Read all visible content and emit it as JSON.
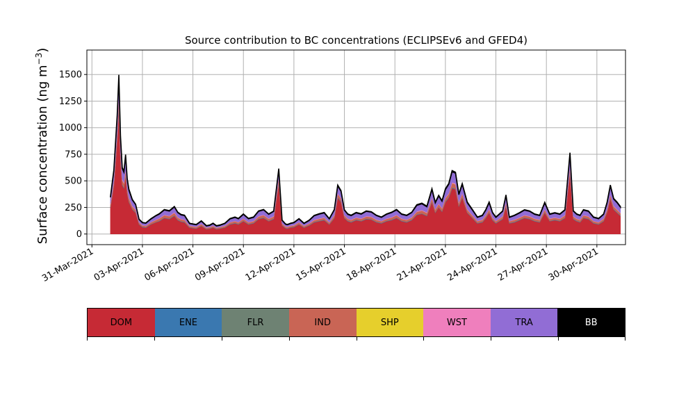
{
  "chart_data": {
    "type": "area",
    "title": "Source contribution to BC concentrations (ECLIPSEv6 and GFED4)",
    "ylabel_main": "Surface concentration (ng m",
    "ylabel_sup": "−3",
    "ylabel_close": ")",
    "xlabel": "",
    "grid": true,
    "ylim": [
      -100,
      1730
    ],
    "xlim": [
      -0.3,
      31.7
    ],
    "yticks": [
      0,
      250,
      500,
      750,
      1000,
      1250,
      1500
    ],
    "ytick_labels": [
      "0",
      "250",
      "500",
      "750",
      "1000",
      "1250",
      "1500"
    ],
    "xticks": [
      0,
      3,
      6,
      9,
      12,
      15,
      18,
      21,
      24,
      27,
      30
    ],
    "xtick_labels": [
      "31-Mar-2021",
      "03-Apr-2021",
      "06-Apr-2021",
      "09-Apr-2021",
      "12-Apr-2021",
      "15-Apr-2021",
      "18-Apr-2021",
      "21-Apr-2021",
      "24-Apr-2021",
      "27-Apr-2021",
      "30-Apr-2021"
    ],
    "legend_placement": "below",
    "legend": [
      {
        "name": "DOM",
        "color": "#c62a35"
      },
      {
        "name": "ENE",
        "color": "#3a78b0"
      },
      {
        "name": "FLR",
        "color": "#6e8273"
      },
      {
        "name": "IND",
        "color": "#c96555"
      },
      {
        "name": "SHP",
        "color": "#e6cf2c"
      },
      {
        "name": "WST",
        "color": "#ef7fbd"
      },
      {
        "name": "TRA",
        "color": "#916dd5"
      },
      {
        "name": "BB",
        "color": "#000000"
      }
    ],
    "x": [
      1.1,
      1.3,
      1.5,
      1.6,
      1.7,
      1.8,
      1.9,
      2.0,
      2.1,
      2.2,
      2.4,
      2.6,
      2.8,
      3.0,
      3.2,
      3.5,
      3.8,
      4.0,
      4.3,
      4.6,
      4.9,
      5.1,
      5.3,
      5.5,
      5.8,
      6.0,
      6.2,
      6.5,
      6.8,
      7.0,
      7.2,
      7.4,
      7.6,
      7.9,
      8.2,
      8.5,
      8.7,
      9.0,
      9.3,
      9.6,
      9.9,
      10.2,
      10.5,
      10.8,
      11.1,
      11.3,
      11.5,
      11.6,
      11.7,
      11.8,
      12.0,
      12.3,
      12.6,
      12.9,
      13.2,
      13.5,
      13.8,
      14.1,
      14.4,
      14.6,
      14.8,
      15.0,
      15.2,
      15.4,
      15.7,
      16.0,
      16.3,
      16.6,
      16.9,
      17.2,
      17.5,
      17.8,
      18.1,
      18.4,
      18.7,
      19.0,
      19.3,
      19.6,
      19.9,
      20.2,
      20.4,
      20.6,
      20.8,
      21.0,
      21.2,
      21.4,
      21.6,
      21.8,
      22.0,
      22.3,
      22.6,
      22.9,
      23.2,
      23.4,
      23.6,
      23.8,
      24.0,
      24.2,
      24.4,
      24.6,
      24.8,
      25.1,
      25.4,
      25.7,
      26.0,
      26.3,
      26.6,
      26.9,
      27.2,
      27.5,
      27.8,
      28.1,
      28.4,
      28.6,
      28.8,
      29.0,
      29.2,
      29.5,
      29.8,
      30.1,
      30.4,
      30.6,
      30.8,
      31.0,
      31.2,
      31.4
    ],
    "series": [
      {
        "name": "DOM",
        "color": "#c62a35",
        "values": [
          250,
          450,
          880,
          1200,
          700,
          460,
          430,
          550,
          380,
          300,
          230,
          200,
          90,
          65,
          60,
          90,
          110,
          120,
          150,
          140,
          170,
          130,
          115,
          110,
          60,
          55,
          50,
          75,
          45,
          50,
          60,
          45,
          50,
          60,
          90,
          100,
          90,
          120,
          90,
          100,
          140,
          150,
          120,
          140,
          480,
          80,
          55,
          50,
          55,
          60,
          65,
          90,
          60,
          80,
          110,
          120,
          130,
          90,
          150,
          340,
          300,
          150,
          120,
          110,
          130,
          120,
          140,
          135,
          110,
          100,
          120,
          130,
          150,
          120,
          110,
          130,
          180,
          190,
          170,
          300,
          200,
          250,
          210,
          300,
          340,
          430,
          420,
          260,
          340,
          200,
          150,
          100,
          110,
          150,
          200,
          130,
          100,
          120,
          140,
          260,
          100,
          110,
          130,
          150,
          140,
          120,
          110,
          200,
          120,
          130,
          120,
          150,
          580,
          140,
          120,
          110,
          150,
          140,
          100,
          90,
          120,
          200,
          330,
          230,
          200,
          170
        ]
      },
      {
        "name": "ENE",
        "color": "#3a78b0",
        "values": [
          3,
          5,
          8,
          10,
          7,
          5,
          5,
          6,
          4,
          4,
          3,
          3,
          2,
          2,
          2,
          2,
          2,
          3,
          3,
          3,
          3,
          3,
          3,
          3,
          2,
          2,
          2,
          2,
          2,
          2,
          2,
          2,
          2,
          2,
          2,
          3,
          3,
          3,
          3,
          3,
          3,
          3,
          3,
          3,
          5,
          2,
          2,
          2,
          2,
          2,
          2,
          2,
          2,
          2,
          3,
          3,
          3,
          2,
          3,
          4,
          4,
          3,
          3,
          3,
          3,
          3,
          3,
          3,
          3,
          3,
          3,
          3,
          3,
          3,
          3,
          3,
          3,
          3,
          3,
          4,
          3,
          3,
          3,
          4,
          4,
          5,
          5,
          4,
          4,
          3,
          3,
          3,
          3,
          3,
          3,
          3,
          3,
          3,
          3,
          4,
          3,
          3,
          3,
          3,
          3,
          3,
          3,
          3,
          3,
          3,
          3,
          3,
          5,
          3,
          3,
          3,
          3,
          3,
          3,
          3,
          3,
          3,
          4,
          3,
          3,
          3
        ]
      },
      {
        "name": "FLR",
        "color": "#6e8273",
        "values": [
          2,
          3,
          5,
          6,
          4,
          3,
          3,
          4,
          3,
          3,
          2,
          2,
          2,
          2,
          2,
          2,
          2,
          2,
          2,
          2,
          2,
          2,
          2,
          2,
          2,
          2,
          2,
          2,
          2,
          2,
          2,
          2,
          2,
          2,
          2,
          2,
          2,
          2,
          2,
          2,
          2,
          2,
          2,
          2,
          3,
          2,
          2,
          2,
          2,
          2,
          2,
          2,
          2,
          2,
          2,
          2,
          2,
          2,
          2,
          3,
          3,
          2,
          2,
          2,
          2,
          2,
          2,
          2,
          2,
          2,
          2,
          2,
          2,
          2,
          2,
          2,
          2,
          2,
          2,
          3,
          2,
          2,
          2,
          3,
          3,
          3,
          3,
          3,
          3,
          2,
          2,
          2,
          2,
          2,
          2,
          2,
          2,
          2,
          2,
          3,
          2,
          2,
          2,
          2,
          2,
          2,
          2,
          2,
          2,
          2,
          2,
          2,
          3,
          2,
          2,
          2,
          2,
          2,
          2,
          2,
          2,
          2,
          3,
          2,
          2,
          2
        ]
      },
      {
        "name": "IND",
        "color": "#c96555",
        "values": [
          25,
          40,
          60,
          80,
          55,
          40,
          40,
          45,
          35,
          30,
          25,
          22,
          15,
          12,
          12,
          15,
          18,
          20,
          22,
          22,
          25,
          20,
          18,
          18,
          12,
          12,
          12,
          14,
          10,
          10,
          12,
          10,
          10,
          12,
          15,
          16,
          15,
          18,
          15,
          16,
          20,
          22,
          18,
          20,
          40,
          15,
          12,
          12,
          12,
          12,
          12,
          15,
          12,
          14,
          16,
          18,
          18,
          15,
          20,
          30,
          28,
          20,
          18,
          18,
          18,
          18,
          20,
          20,
          18,
          16,
          18,
          20,
          22,
          18,
          18,
          20,
          24,
          26,
          24,
          30,
          25,
          28,
          26,
          30,
          32,
          40,
          38,
          28,
          32,
          25,
          20,
          16,
          18,
          20,
          25,
          18,
          16,
          18,
          20,
          28,
          16,
          18,
          18,
          20,
          20,
          18,
          18,
          24,
          18,
          18,
          18,
          20,
          40,
          20,
          18,
          18,
          20,
          20,
          16,
          15,
          18,
          24,
          30,
          26,
          24,
          22
        ]
      },
      {
        "name": "SHP",
        "color": "#e6cf2c",
        "values": [
          0,
          0,
          1,
          1,
          1,
          0,
          0,
          1,
          0,
          0,
          0,
          0,
          0,
          0,
          0,
          0,
          0,
          0,
          0,
          0,
          0,
          0,
          0,
          0,
          0,
          0,
          0,
          0,
          0,
          0,
          0,
          0,
          0,
          0,
          0,
          0,
          0,
          0,
          0,
          0,
          0,
          0,
          0,
          0,
          1,
          0,
          0,
          0,
          0,
          0,
          0,
          0,
          0,
          0,
          0,
          0,
          0,
          0,
          0,
          0,
          0,
          0,
          0,
          0,
          0,
          0,
          0,
          0,
          0,
          0,
          0,
          0,
          0,
          0,
          0,
          0,
          0,
          0,
          0,
          0,
          0,
          0,
          0,
          0,
          0,
          1,
          1,
          0,
          0,
          0,
          0,
          0,
          0,
          0,
          0,
          0,
          0,
          0,
          0,
          0,
          0,
          0,
          0,
          0,
          0,
          0,
          0,
          0,
          0,
          0,
          0,
          0,
          1,
          0,
          0,
          0,
          0,
          0,
          0,
          0,
          0,
          0,
          0,
          0,
          0,
          0
        ]
      },
      {
        "name": "WST",
        "color": "#ef7fbd",
        "values": [
          5,
          8,
          12,
          15,
          10,
          8,
          8,
          9,
          7,
          6,
          5,
          4,
          3,
          3,
          3,
          3,
          4,
          4,
          4,
          4,
          5,
          4,
          4,
          4,
          3,
          3,
          3,
          3,
          2,
          2,
          3,
          2,
          2,
          3,
          3,
          3,
          3,
          4,
          3,
          3,
          4,
          4,
          4,
          4,
          8,
          3,
          3,
          3,
          3,
          3,
          3,
          3,
          3,
          3,
          4,
          4,
          4,
          3,
          4,
          6,
          5,
          4,
          4,
          4,
          4,
          4,
          4,
          4,
          4,
          3,
          4,
          4,
          4,
          4,
          4,
          4,
          5,
          5,
          5,
          6,
          5,
          5,
          5,
          6,
          6,
          8,
          8,
          5,
          6,
          5,
          4,
          3,
          4,
          4,
          5,
          4,
          3,
          4,
          4,
          5,
          3,
          4,
          4,
          4,
          4,
          4,
          4,
          5,
          4,
          4,
          4,
          4,
          8,
          4,
          4,
          4,
          4,
          4,
          3,
          3,
          4,
          5,
          6,
          5,
          5,
          4
        ]
      },
      {
        "name": "TRA",
        "color": "#916dd5",
        "values": [
          60,
          90,
          140,
          170,
          130,
          100,
          95,
          120,
          80,
          70,
          55,
          45,
          25,
          22,
          22,
          28,
          35,
          38,
          45,
          45,
          50,
          42,
          38,
          36,
          20,
          18,
          18,
          25,
          15,
          16,
          20,
          15,
          16,
          20,
          30,
          32,
          30,
          38,
          30,
          32,
          44,
          46,
          38,
          44,
          70,
          26,
          18,
          18,
          18,
          20,
          22,
          30,
          20,
          26,
          36,
          40,
          42,
          30,
          48,
          70,
          62,
          46,
          38,
          36,
          42,
          40,
          44,
          42,
          36,
          32,
          38,
          42,
          46,
          38,
          36,
          42,
          55,
          58,
          52,
          75,
          58,
          70,
          62,
          75,
          82,
          100,
          96,
          70,
          82,
          60,
          48,
          32,
          36,
          46,
          60,
          42,
          32,
          38,
          44,
          62,
          32,
          36,
          40,
          46,
          44,
          38,
          36,
          58,
          38,
          40,
          38,
          46,
          120,
          46,
          38,
          36,
          46,
          44,
          32,
          30,
          38,
          56,
          80,
          62,
          60,
          52
        ]
      },
      {
        "name": "BB",
        "color": "#000000",
        "values": [
          5,
          8,
          12,
          15,
          12,
          10,
          10,
          12,
          10,
          8,
          5,
          4,
          3,
          3,
          3,
          3,
          3,
          4,
          4,
          4,
          4,
          4,
          4,
          4,
          3,
          3,
          3,
          3,
          3,
          3,
          3,
          3,
          3,
          3,
          3,
          4,
          4,
          4,
          4,
          4,
          4,
          4,
          4,
          4,
          8,
          3,
          3,
          3,
          3,
          3,
          3,
          3,
          3,
          3,
          4,
          4,
          4,
          3,
          4,
          8,
          6,
          4,
          4,
          4,
          4,
          4,
          4,
          4,
          4,
          4,
          4,
          4,
          4,
          4,
          4,
          4,
          6,
          6,
          6,
          8,
          6,
          6,
          6,
          8,
          8,
          10,
          10,
          8,
          8,
          6,
          5,
          4,
          4,
          5,
          6,
          4,
          4,
          4,
          4,
          6,
          4,
          4,
          4,
          4,
          4,
          4,
          4,
          6,
          4,
          4,
          4,
          4,
          8,
          4,
          4,
          4,
          4,
          4,
          4,
          4,
          4,
          6,
          8,
          6,
          6,
          6
        ]
      }
    ]
  }
}
